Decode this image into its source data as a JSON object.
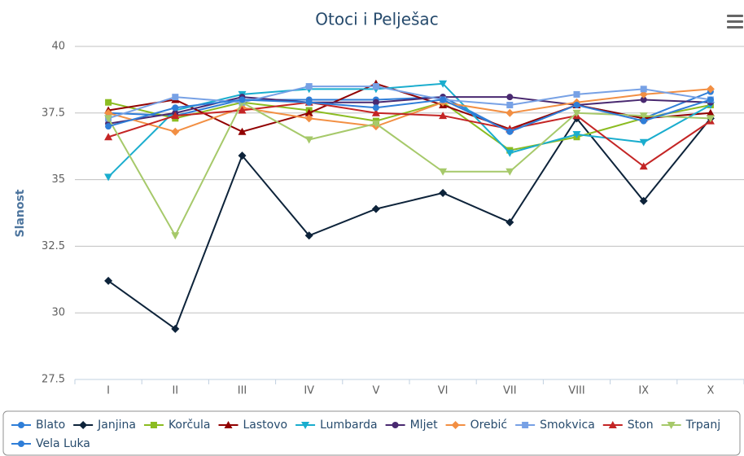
{
  "chart_data": {
    "type": "line",
    "title": "Otoci i Pelješac",
    "y_label": "Slanost",
    "categories": [
      "I",
      "II",
      "III",
      "IV",
      "V",
      "VI",
      "VII",
      "VIII",
      "IX",
      "X"
    ],
    "ylim": [
      27.5,
      40
    ],
    "yticks": [
      27.5,
      30,
      32.5,
      35,
      37.5,
      40
    ],
    "grid": true,
    "legend": "bottom",
    "series": [
      {
        "name": "Blato",
        "color": "#2f7ed8",
        "marker": "circle",
        "values": [
          37.5,
          37.4,
          38.0,
          38.0,
          38.0,
          38.1,
          36.8,
          37.8,
          37.3,
          38.3
        ]
      },
      {
        "name": "Janjina",
        "color": "#0d233a",
        "marker": "diamond",
        "values": [
          31.2,
          29.4,
          35.9,
          32.9,
          33.9,
          34.5,
          33.4,
          37.3,
          34.2,
          37.3
        ]
      },
      {
        "name": "Korčula",
        "color": "#8bbc21",
        "marker": "square",
        "values": [
          37.9,
          37.3,
          37.9,
          37.6,
          37.2,
          37.9,
          36.1,
          36.6,
          37.3,
          37.8
        ]
      },
      {
        "name": "Lastovo",
        "color": "#910000",
        "marker": "triangle",
        "values": [
          37.6,
          38.0,
          36.8,
          37.5,
          38.6,
          37.8,
          36.9,
          37.8,
          37.3,
          37.5
        ]
      },
      {
        "name": "Lumbarda",
        "color": "#1aadce",
        "marker": "triangle-down",
        "values": [
          35.1,
          37.6,
          38.2,
          38.4,
          38.4,
          38.6,
          36.0,
          36.7,
          36.4,
          37.8
        ]
      },
      {
        "name": "Mljet",
        "color": "#492970",
        "marker": "circle",
        "values": [
          37.1,
          37.5,
          38.1,
          37.9,
          37.9,
          38.1,
          38.1,
          37.8,
          38.0,
          37.9
        ]
      },
      {
        "name": "Orebić",
        "color": "#f28f43",
        "marker": "diamond",
        "values": [
          37.5,
          36.8,
          37.7,
          37.3,
          37.0,
          37.9,
          37.5,
          37.9,
          38.2,
          38.4
        ]
      },
      {
        "name": "Smokvica",
        "color": "#77a1e5",
        "marker": "square",
        "values": [
          37.3,
          38.1,
          37.9,
          38.5,
          38.5,
          38.0,
          37.8,
          38.2,
          38.4,
          38.0
        ]
      },
      {
        "name": "Ston",
        "color": "#c42525",
        "marker": "triangle",
        "values": [
          36.6,
          37.4,
          37.6,
          37.9,
          37.5,
          37.4,
          36.9,
          37.4,
          35.5,
          37.2
        ]
      },
      {
        "name": "Trpanj",
        "color": "#a6c96a",
        "marker": "triangle-down",
        "values": [
          37.3,
          32.9,
          37.9,
          36.5,
          37.1,
          35.3,
          35.3,
          37.5,
          37.4,
          37.3
        ]
      },
      {
        "name": "Vela Luka",
        "color": "#2f7ed8",
        "marker": "circle",
        "values": [
          37.0,
          37.7,
          38.0,
          37.9,
          37.7,
          38.0,
          36.8,
          37.8,
          37.2,
          38.0
        ]
      }
    ]
  }
}
